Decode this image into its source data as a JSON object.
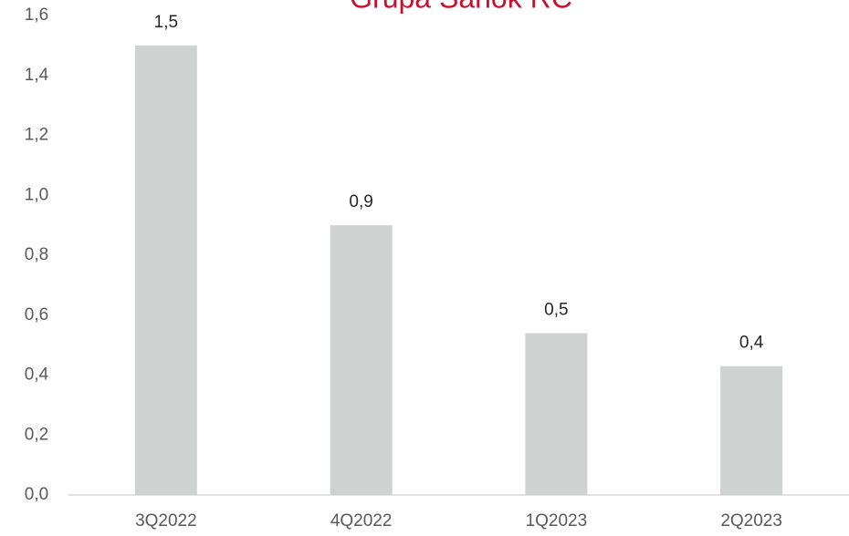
{
  "chart_data": {
    "type": "bar",
    "title": "Grupa Sanok RC",
    "categories": [
      "3Q2022",
      "4Q2022",
      "1Q2023",
      "2Q2023"
    ],
    "values": [
      1.5,
      0.9,
      0.54,
      0.43
    ],
    "value_labels": [
      "1,5",
      "0,9",
      "0,5",
      "0,4"
    ],
    "color": "#d0d2d1",
    "ylim": [
      0,
      1.6
    ],
    "yticks": [
      {
        "value": 0,
        "label": "0,0"
      },
      {
        "value": 0.2,
        "label": "0,2"
      },
      {
        "value": 0.4,
        "label": "0,4"
      },
      {
        "value": 0.6,
        "label": "0,6"
      },
      {
        "value": 0.8,
        "label": "0,8"
      },
      {
        "value": 1.0,
        "label": "1,0"
      },
      {
        "value": 1.2,
        "label": "1,2"
      },
      {
        "value": 1.4,
        "label": "1,4"
      },
      {
        "value": 1.6,
        "label": "1,6"
      }
    ],
    "grid": false
  }
}
